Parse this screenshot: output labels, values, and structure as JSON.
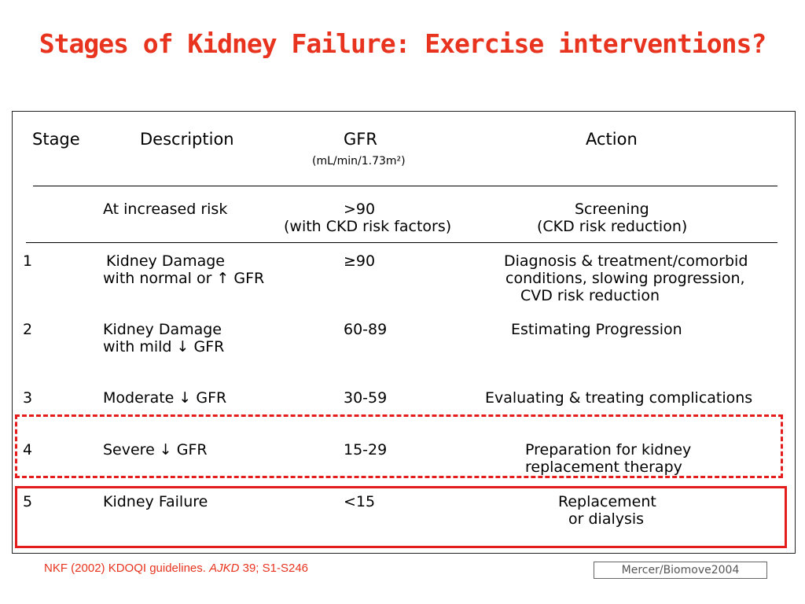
{
  "title": "Stages of Kidney Failure: Exercise interventions?",
  "header": {
    "stage": "Stage",
    "description": "Description",
    "gfr": "GFR",
    "gfr_units": "(mL/min/1.73m²)",
    "action": "Action"
  },
  "rows": [
    {
      "stage": "",
      "description": [
        "At increased risk"
      ],
      "gfr": [
        ">90",
        "(with CKD risk factors)"
      ],
      "action": [
        "Screening",
        "(CKD risk reduction)"
      ]
    },
    {
      "stage": "1",
      "description": [
        "Kidney Damage",
        "with normal or ↑ GFR"
      ],
      "gfr": [
        "≥90"
      ],
      "action": [
        "Diagnosis & treatment/comorbid",
        "conditions, slowing progression,",
        "CVD risk reduction"
      ]
    },
    {
      "stage": "2",
      "description": [
        "Kidney Damage",
        "with mild ↓ GFR"
      ],
      "gfr": [
        "60-89"
      ],
      "action": [
        "Estimating Progression"
      ]
    },
    {
      "stage": "3",
      "description": [
        "Moderate ↓ GFR"
      ],
      "gfr": [
        "30-59"
      ],
      "action": [
        "Evaluating & treating complications"
      ]
    },
    {
      "stage": "4",
      "description": [
        "Severe ↓ GFR"
      ],
      "gfr": [
        "15-29"
      ],
      "action": [
        "Preparation for kidney",
        "replacement therapy"
      ]
    },
    {
      "stage": "5",
      "description": [
        "Kidney Failure"
      ],
      "gfr": [
        "<15"
      ],
      "action": [
        "Replacement",
        "or dialysis"
      ]
    }
  ],
  "citation": {
    "prefix": "NKF (2002) KDOQI guidelines. ",
    "journal": "AJKD",
    "suffix": " 39; S1-S246"
  },
  "credit": "Mercer/Biomove2004",
  "colors": {
    "title": "#e8331e",
    "highlight": "#e41c1c"
  }
}
